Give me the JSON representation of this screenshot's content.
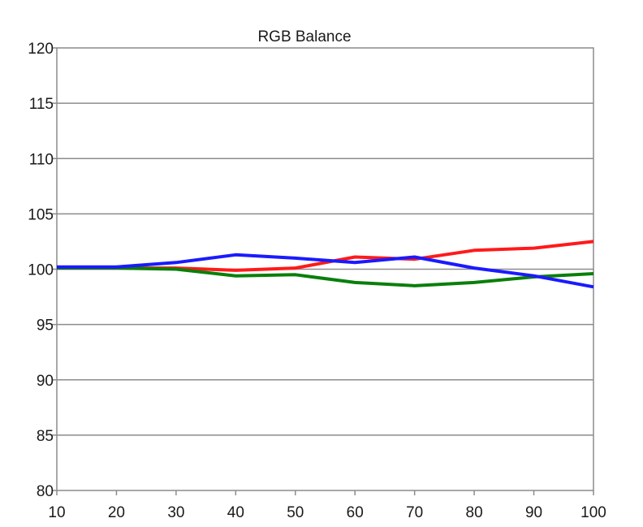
{
  "chart_data": {
    "type": "line",
    "title": "RGB Balance",
    "xlabel": "",
    "ylabel": "",
    "x": [
      10,
      20,
      30,
      40,
      50,
      60,
      70,
      80,
      90,
      100
    ],
    "xlim": [
      10,
      100
    ],
    "ylim": [
      80,
      120
    ],
    "xticks": [
      "10",
      "20",
      "30",
      "40",
      "50",
      "60",
      "70",
      "80",
      "90",
      "100"
    ],
    "yticks": [
      "80",
      "85",
      "90",
      "95",
      "100",
      "105",
      "110",
      "115",
      "120"
    ],
    "grid": "horizontal",
    "legend": "none",
    "series": [
      {
        "color": "#ff1a1a",
        "values": [
          100.1,
          100.1,
          100.1,
          99.9,
          100.1,
          101.1,
          100.9,
          101.7,
          101.9,
          102.5
        ]
      },
      {
        "color": "#0a7f0a",
        "values": [
          100.1,
          100.1,
          100.0,
          99.4,
          99.5,
          98.8,
          98.5,
          98.8,
          99.3,
          99.6
        ]
      },
      {
        "color": "#1a1aff",
        "values": [
          100.2,
          100.2,
          100.6,
          101.3,
          101.0,
          100.6,
          101.1,
          100.1,
          99.4,
          98.4
        ]
      }
    ]
  }
}
